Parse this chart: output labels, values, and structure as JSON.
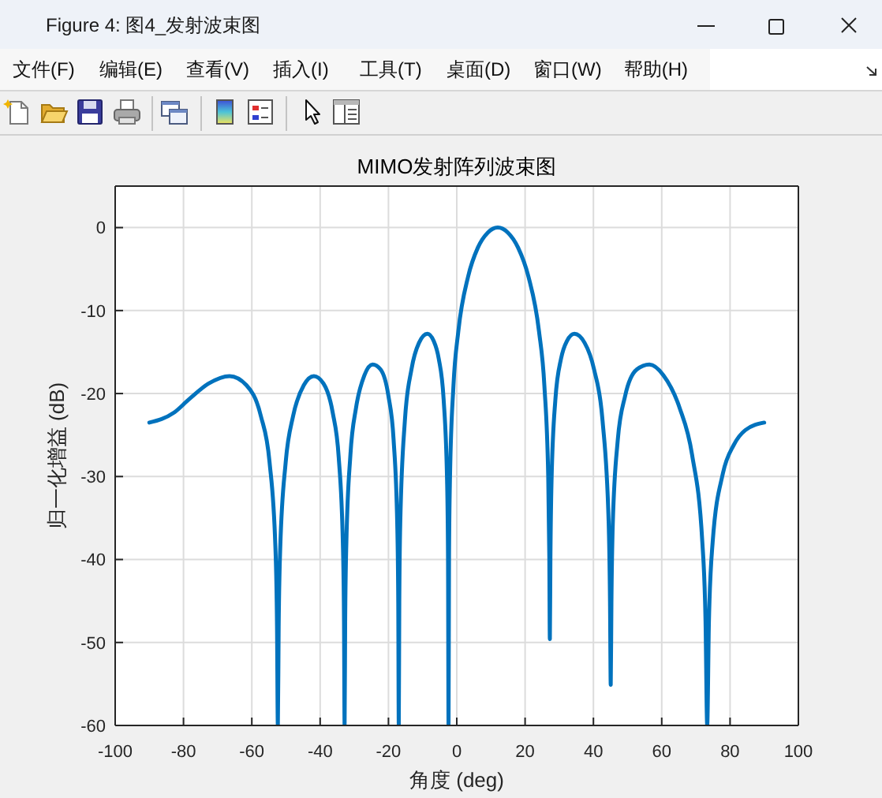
{
  "chart_data": {
    "type": "line",
    "title": "MIMO发射阵列波束图",
    "xlabel": "角度 (deg)",
    "ylabel": "归一化增益 (dB)",
    "annotations": [
      "Figure 4: 图4_发射波束图",
      "文件(F)",
      "编辑(E)",
      "查看(V)",
      "插入(I)",
      "工具(T)",
      "桌面(D)",
      "窗口(W)",
      "帮助(H)"
    ],
    "x": [
      -90,
      -82.79,
      -78.4,
      -72.66,
      -66.5,
      -61.58,
      -57.36,
      -54.8,
      -53.09,
      -52.62,
      -52.38,
      -52.14,
      -51.68,
      -50.09,
      -47.91,
      -44.79,
      -41.83,
      -39.02,
      -36.32,
      -34.56,
      -33.35,
      -33.01,
      -32.84,
      -32.67,
      -32.32,
      -31.14,
      -29.48,
      -27.04,
      -24.65,
      -22.31,
      -20.01,
      -18.49,
      -17.43,
      -17.13,
      -16.98,
      -16.83,
      -16.54,
      -15.2,
      -13.27,
      -11.07,
      -8.6,
      -6.72,
      -5.28,
      -3.85,
      -2.84,
      -2.56,
      -2.41,
      -2.27,
      -1.98,
      -0.98,
      0.45,
      3.32,
      6.19,
      9.09,
      12,
      14.95,
      17.93,
      20.97,
      24.07,
      25.65,
      26.77,
      27.09,
      27.25,
      27.41,
      27.74,
      28.87,
      30.52,
      32.2,
      34.43,
      37.44,
      40.19,
      42.68,
      44.46,
      44.86,
      45.07,
      45.27,
      45.67,
      47.13,
      49.28,
      52.7,
      56.4,
      60.5,
      65.21,
      68.89,
      71.88,
      72.82,
      73.31,
      73.81,
      74.89,
      77.92,
      81.08,
      84.5,
      90
    ],
    "series": [
      {
        "color": "#0072bd",
        "values": [
          -23.5,
          -22.3,
          -20.7,
          -18.8,
          -17.9,
          -19,
          -22.7,
          -28.3,
          -38.6,
          -48.1,
          -60,
          -48.1,
          -38.6,
          -28.3,
          -22.7,
          -19,
          -17.9,
          -18.8,
          -22.3,
          -27.7,
          -38,
          -47.5,
          -60,
          -47.4,
          -37.9,
          -27.4,
          -21.7,
          -17.8,
          -16.5,
          -17.1,
          -20.3,
          -25.6,
          -35.7,
          -45.2,
          -60,
          -45.1,
          -35.5,
          -23.3,
          -17.1,
          -13.9,
          -12.8,
          -13.7,
          -15.8,
          -20.7,
          -30.5,
          -39.9,
          -60,
          -39.7,
          -30,
          -19.1,
          -12.5,
          -5.9,
          -2.4,
          -0.6,
          0,
          -0.6,
          -2.4,
          -5.9,
          -12.5,
          -19.1,
          -30,
          -39.7,
          -49.6,
          -39.9,
          -30.5,
          -20.7,
          -15.8,
          -13.7,
          -12.8,
          -13.9,
          -17.1,
          -23.3,
          -35.5,
          -45.1,
          -55.1,
          -45.2,
          -35.7,
          -25.6,
          -20.3,
          -17.1,
          -16.5,
          -17.8,
          -21.7,
          -27.4,
          -37.9,
          -47.4,
          -60,
          -47.5,
          -38,
          -29.6,
          -26.2,
          -24.4,
          -23.5
        ]
      }
    ],
    "xlim": [
      -100,
      100
    ],
    "xticks": [
      -100,
      -80,
      -60,
      -40,
      -20,
      0,
      20,
      40,
      60,
      80,
      100
    ],
    "ylim": [
      -60,
      5
    ],
    "yticks": [
      -60,
      -50,
      -40,
      -30,
      -20,
      -10,
      0
    ],
    "grid": true,
    "line_style": "solid"
  }
}
